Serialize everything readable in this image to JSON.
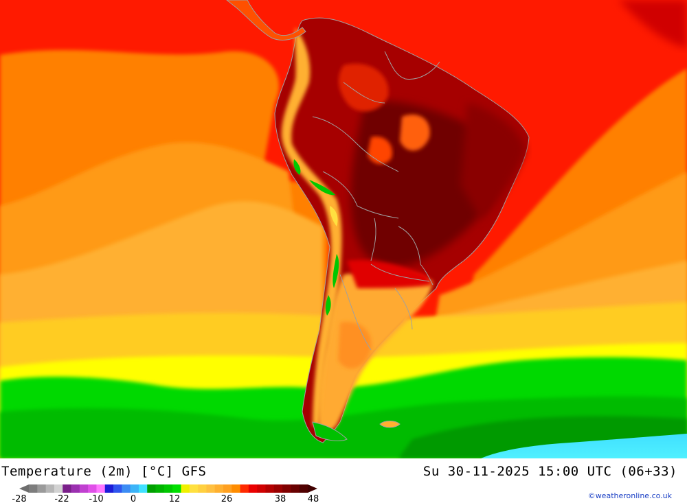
{
  "title": "Temperature (2m) [°C] GFS",
  "datetime": "Su 30-11-2025 15:00 UTC (06+33)",
  "credit": "©weatheronline.co.uk",
  "legend": {
    "tick_labels": [
      "-28",
      "-22",
      "-10",
      "0",
      "12",
      "26",
      "38",
      "48"
    ],
    "colors": [
      "#7d7d7d",
      "#9a9a9a",
      "#b6b6b6",
      "#d2d2d2",
      "#7a1f8a",
      "#9b30b0",
      "#c040d0",
      "#e050e8",
      "#ff78ff",
      "#1c1cd8",
      "#2f55ee",
      "#3c8cf4",
      "#3cb4f8",
      "#40e0ff",
      "#00a000",
      "#00b400",
      "#00c800",
      "#00e000",
      "#f0f000",
      "#ffe040",
      "#ffd040",
      "#ffc040",
      "#ffb030",
      "#ffa020",
      "#ff8c00",
      "#ff2a00",
      "#ea0000",
      "#d00000",
      "#b40000",
      "#9a0000",
      "#800000",
      "#680000",
      "#500000"
    ]
  },
  "map": {
    "ocean_bands": [
      {
        "temp": "8",
        "color": "#00bb00"
      },
      {
        "temp": "12",
        "color": "#00d900"
      },
      {
        "temp": "16",
        "color": "#ffff00"
      },
      {
        "temp": "18",
        "color": "#ffcc22"
      },
      {
        "temp": "22",
        "color": "#ffb030"
      },
      {
        "temp": "24",
        "color": "#ff9a18"
      },
      {
        "temp": "26",
        "color": "#ff8000"
      },
      {
        "temp": "30",
        "color": "#ff1a00"
      }
    ],
    "continent_color": "#a60000",
    "hotspot_color": "#700000",
    "andes_color": "#ffb030",
    "border_color": "#a0a0a0"
  }
}
